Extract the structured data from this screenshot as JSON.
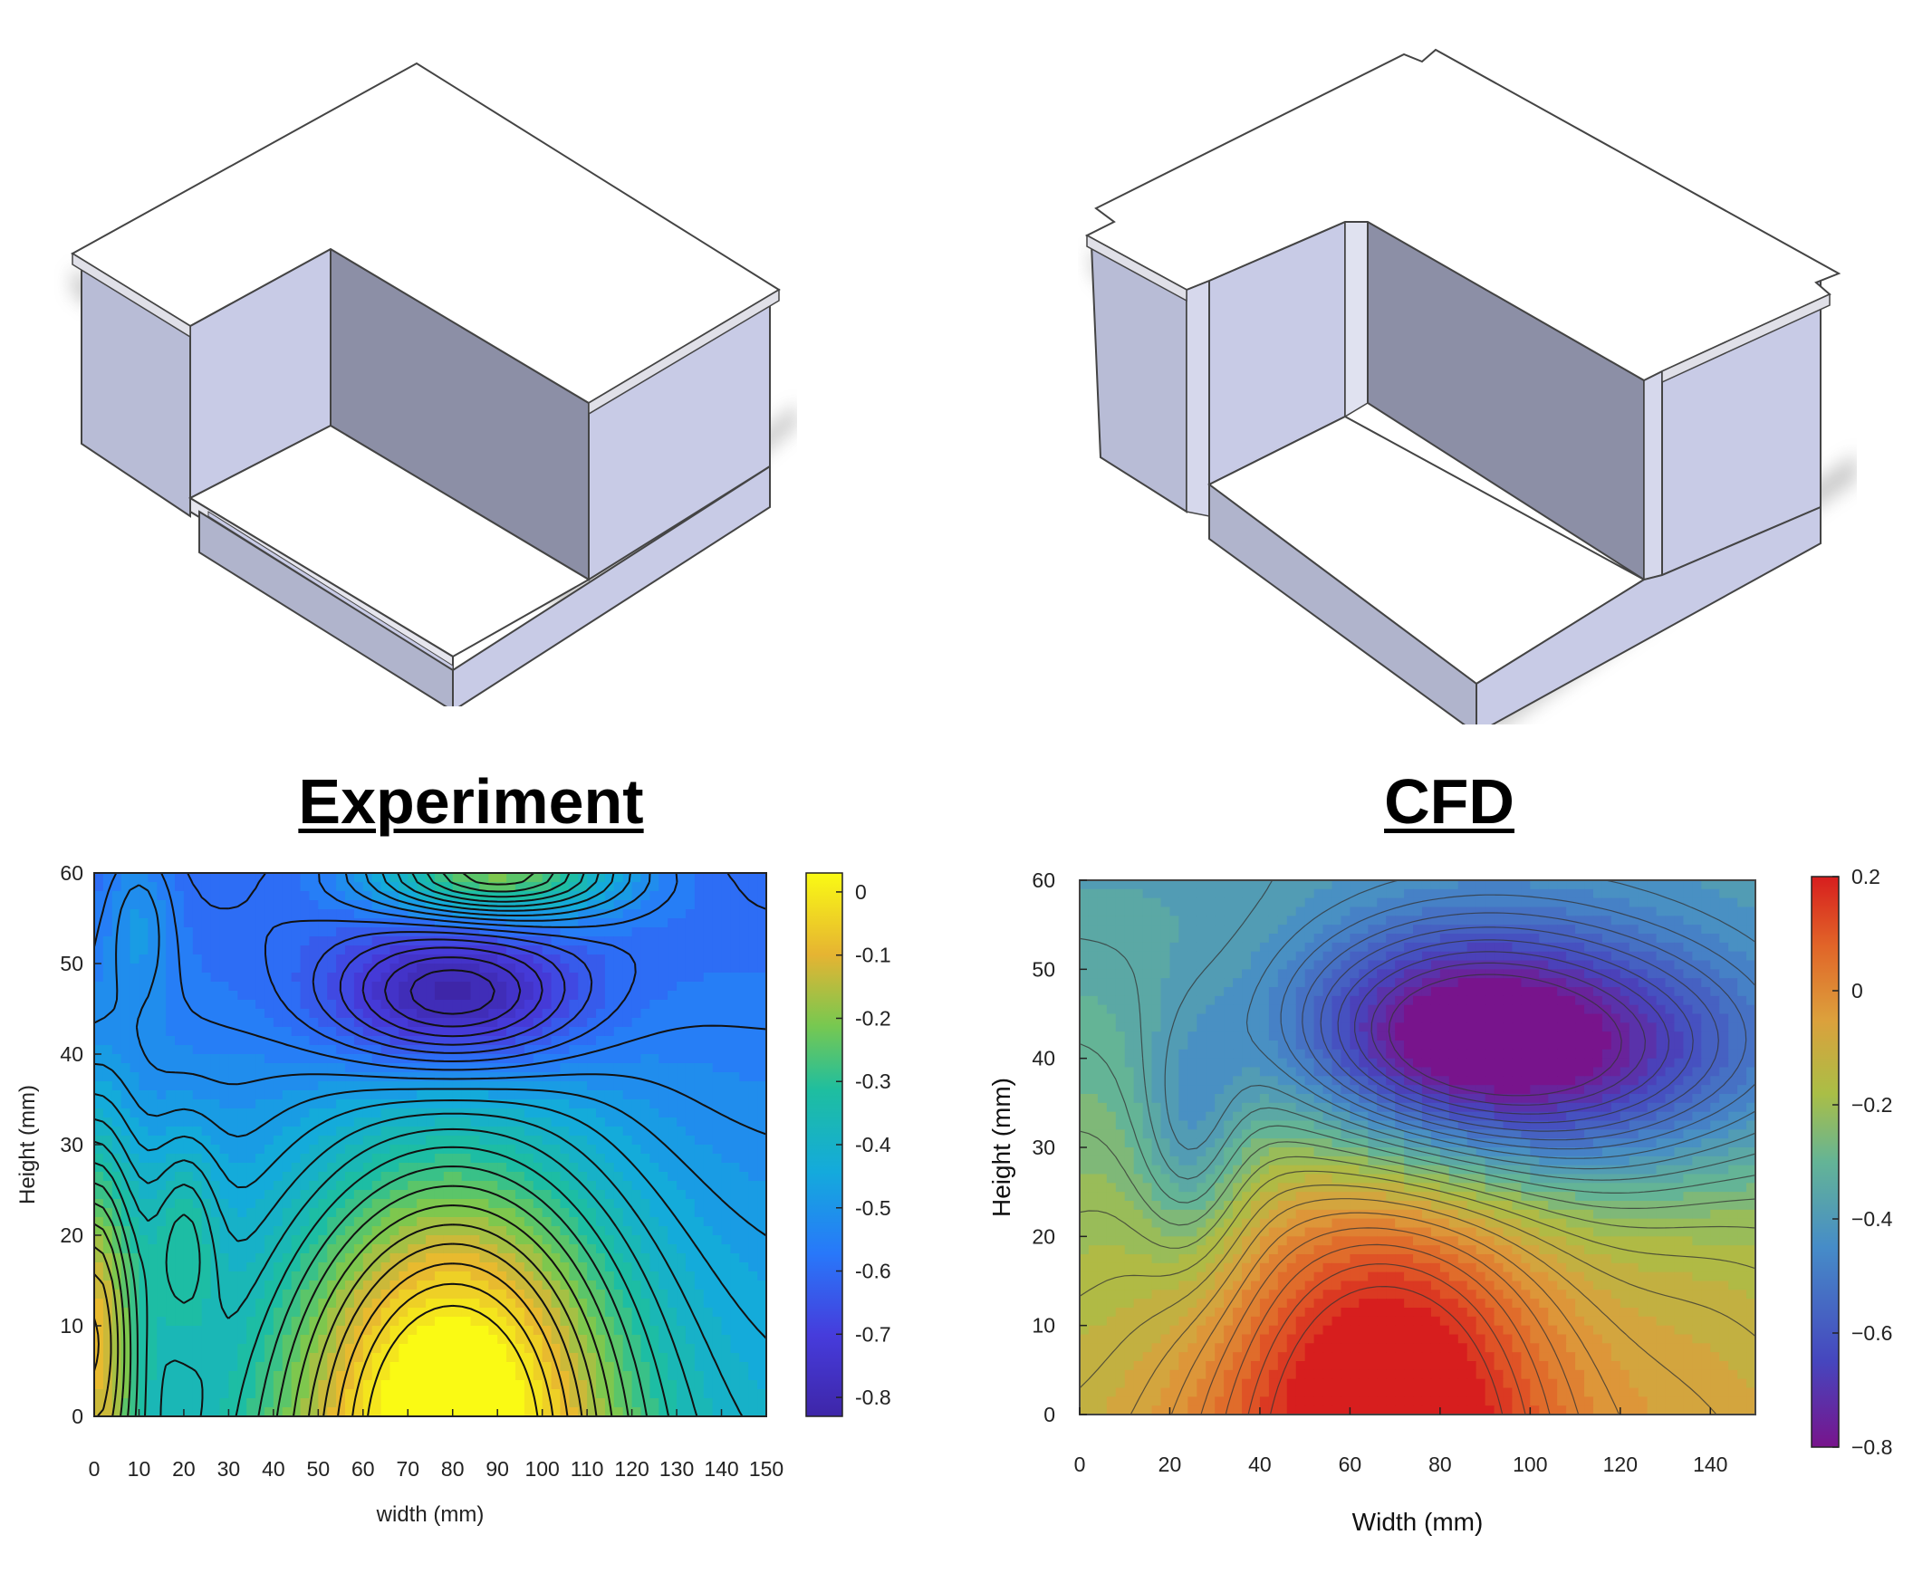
{
  "headings": {
    "experiment": "Experiment",
    "cfd": "CFD"
  },
  "chart_data": [
    {
      "type": "heatmap",
      "subtype": "filled-contour",
      "title": "Experiment",
      "xlabel": "width (mm)",
      "ylabel": "Height (mm)",
      "xlim": [
        0,
        150
      ],
      "ylim": [
        0,
        60
      ],
      "x_ticks": [
        "0",
        "10",
        "20",
        "30",
        "40",
        "50",
        "60",
        "70",
        "80",
        "90",
        "100",
        "110",
        "120",
        "130",
        "140",
        "150"
      ],
      "y_ticks": [
        "0",
        "10",
        "20",
        "30",
        "40",
        "50",
        "60"
      ],
      "colorbar": {
        "range": [
          -0.83,
          0.03
        ],
        "ticks": [
          "0",
          "-0.1",
          "-0.2",
          "-0.3",
          "-0.4",
          "-0.5",
          "-0.6",
          "-0.7",
          "-0.8"
        ],
        "colormap": "parula"
      },
      "features": [
        {
          "x": 80,
          "y": 46,
          "value": -0.82,
          "extent_x": 28,
          "extent_y": 8
        },
        {
          "x": 80,
          "y": 0,
          "value": 0.02,
          "extent_x": 38,
          "extent_y": 30
        },
        {
          "x": 0,
          "y": 10,
          "value": -0.15,
          "extent_x": 10,
          "extent_y": 22
        },
        {
          "x": 20,
          "y": 20,
          "value": -0.37,
          "extent_x": 8,
          "extent_y": 12
        },
        {
          "x": 10,
          "y": 55,
          "value": -0.42,
          "extent_x": 8,
          "extent_y": 10
        },
        {
          "x": 90,
          "y": 60,
          "value": -0.12,
          "extent_x": 28,
          "extent_y": 5
        }
      ],
      "background_value": -0.52,
      "vertical_trend": -0.003
    },
    {
      "type": "heatmap",
      "subtype": "filled-contour",
      "title": "CFD",
      "xlabel": "Width (mm)",
      "ylabel": "Height (mm)",
      "xlim": [
        0,
        150
      ],
      "ylim": [
        0,
        60
      ],
      "x_ticks": [
        "0",
        "20",
        "40",
        "60",
        "80",
        "100",
        "120",
        "140"
      ],
      "y_ticks": [
        "0",
        "10",
        "20",
        "30",
        "40",
        "50",
        "60"
      ],
      "colorbar": {
        "range": [
          -0.8,
          0.2
        ],
        "ticks": [
          "0.2",
          "0",
          "−0.2",
          "−0.4",
          "−0.6",
          "−0.8"
        ],
        "colormap": "rainbow"
      },
      "features": [
        {
          "x": 68,
          "y": 0,
          "value": 0.18,
          "extent_x": 40,
          "extent_y": 32
        },
        {
          "x": 80,
          "y": 42,
          "value": -0.67,
          "extent_x": 38,
          "extent_y": 13
        },
        {
          "x": 115,
          "y": 40,
          "value": -0.6,
          "extent_x": 50,
          "extent_y": 14
        },
        {
          "x": 25,
          "y": 30,
          "value": -0.42,
          "extent_x": 12,
          "extent_y": 14
        },
        {
          "x": 140,
          "y": 10,
          "value": -0.2,
          "extent_x": 25,
          "extent_y": 25
        }
      ],
      "background_value": -0.25,
      "vertical_trend": -0.004
    }
  ]
}
